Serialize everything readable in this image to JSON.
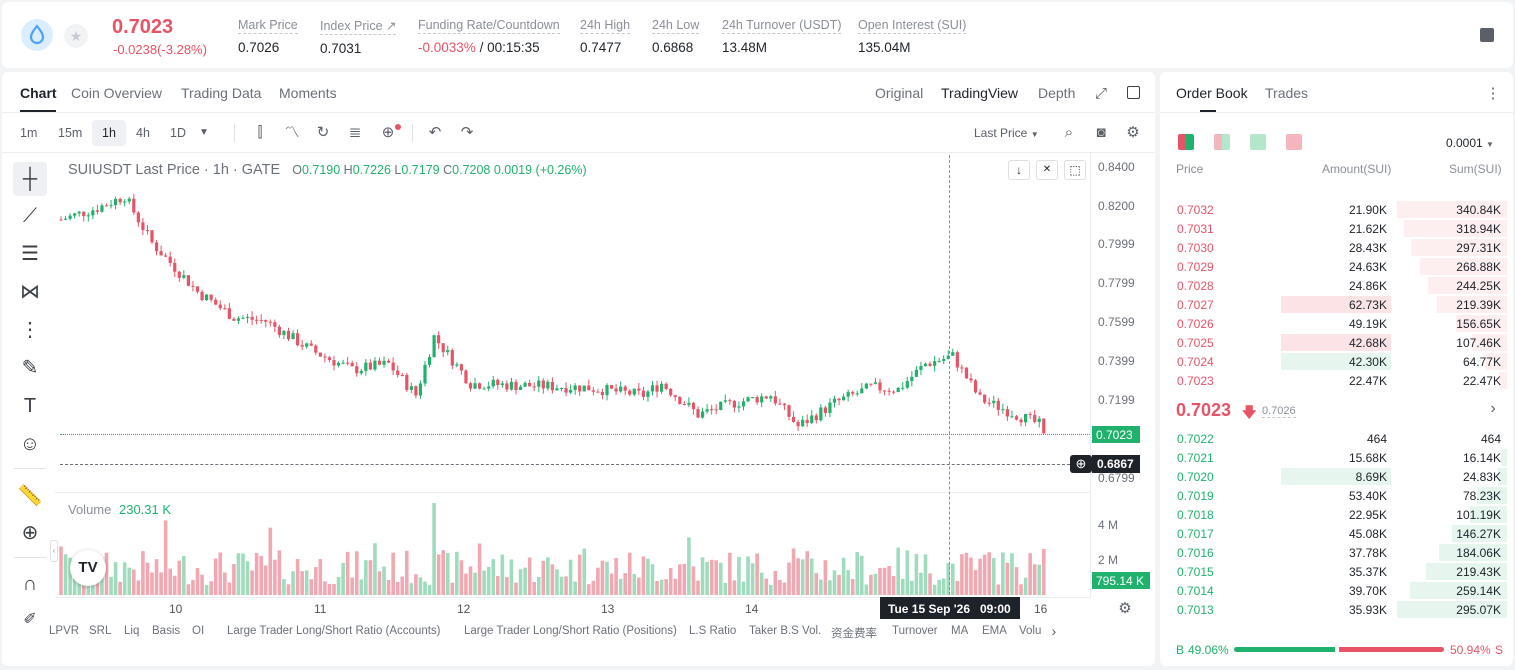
{
  "header": {
    "last_price": "0.7023",
    "change": "-0.0238(-3.28%)",
    "stats": [
      {
        "label": "Mark Price",
        "value": "0.7026"
      },
      {
        "label": "Index Price ↗",
        "value": "0.7031"
      },
      {
        "label": "Funding Rate/Countdown",
        "value_red": "-0.0033%",
        "value": "/ 00:15:35"
      },
      {
        "label": "24h High",
        "value": "0.7477"
      },
      {
        "label": "24h Low",
        "value": "0.6868"
      },
      {
        "label": "24h Turnover (USDT)",
        "value": "13.48M"
      },
      {
        "label": "Open Interest (SUI)",
        "value": "135.04M"
      }
    ]
  },
  "chart_panel": {
    "tabs": [
      "Chart",
      "Coin Overview",
      "Trading Data",
      "Moments"
    ],
    "views": [
      "Original",
      "TradingView",
      "Depth"
    ],
    "timeframes": [
      "1m",
      "15m",
      "1h",
      "4h",
      "1D"
    ],
    "price_type": "Last Price",
    "legend_title": "SUIUSDT Last Price · 1h · GATE",
    "ohlc": {
      "o_lbl": "O",
      "o": "0.7190",
      "h_lbl": "H",
      "h": "0.7226",
      "l_lbl": "L",
      "l": "0.7179",
      "c_lbl": "C",
      "c": "0.7208",
      "chg": "0.0019 (+0.26%)"
    },
    "volume_label": "Volume",
    "volume_value": "230.31 K",
    "price_ticks": [
      "0.8400",
      "0.8200",
      "0.7999",
      "0.7799",
      "0.7599",
      "0.7399",
      "0.7199",
      "0.6799"
    ],
    "current_price_tag": "0.7023",
    "crosshair_price_tag": "0.6867",
    "volume_ticks": [
      "4 M",
      "2 M"
    ],
    "volume_tag": "795.14 K",
    "x_ticks": [
      "10",
      "11",
      "12",
      "13",
      "14",
      "16"
    ],
    "crosshair_time": "Tue 15 Sep '26   09:00",
    "indicators": [
      "LPVR",
      "SRL",
      "Liq",
      "Basis",
      "OI",
      "Large Trader Long/Short Ratio (Accounts)",
      "Large Trader Long/Short Ratio (Positions)",
      "L.S Ratio",
      "Taker B.S Vol.",
      "资金费率",
      "Turnover",
      "MA",
      "EMA",
      "Volu"
    ]
  },
  "order_book": {
    "tabs": [
      "Order Book",
      "Trades"
    ],
    "precision": "0.0001",
    "columns": [
      "Price",
      "Amount(SUI)",
      "Sum(SUI)"
    ],
    "asks": [
      {
        "price": "0.7032",
        "amount": "21.90K",
        "sum": "340.84K",
        "amt_frac": 0.0,
        "sum_frac": 1.0
      },
      {
        "price": "0.7031",
        "amount": "21.62K",
        "sum": "318.94K",
        "amt_frac": 0.0,
        "sum_frac": 0.94
      },
      {
        "price": "0.7030",
        "amount": "28.43K",
        "sum": "297.31K",
        "amt_frac": 0.0,
        "sum_frac": 0.87
      },
      {
        "price": "0.7029",
        "amount": "24.63K",
        "sum": "268.88K",
        "amt_frac": 0.0,
        "sum_frac": 0.79
      },
      {
        "price": "0.7028",
        "amount": "24.86K",
        "sum": "244.25K",
        "amt_frac": 0.0,
        "sum_frac": 0.72
      },
      {
        "price": "0.7027",
        "amount": "62.73K",
        "sum": "219.39K",
        "amt_frac": 1.0,
        "sum_frac": 0.64
      },
      {
        "price": "0.7026",
        "amount": "49.19K",
        "sum": "156.65K",
        "amt_frac": 0.0,
        "sum_frac": 0.46
      },
      {
        "price": "0.7025",
        "amount": "42.68K",
        "sum": "107.46K",
        "amt_frac": 1.0,
        "sum_frac": 0.32
      },
      {
        "price": "0.7024",
        "amount": "42.30K",
        "sum": "64.77K",
        "amt_frac": 1.0,
        "sum_frac": 0.19,
        "amt_green": true
      },
      {
        "price": "0.7023",
        "amount": "22.47K",
        "sum": "22.47K",
        "amt_frac": 0.0,
        "sum_frac": 0.07
      }
    ],
    "mid_price": "0.7023",
    "mid_mark": "0.7026",
    "bids": [
      {
        "price": "0.7022",
        "amount": "464",
        "sum": "464",
        "amt_frac": 0.0,
        "sum_frac": 0.0
      },
      {
        "price": "0.7021",
        "amount": "15.68K",
        "sum": "16.14K",
        "amt_frac": 0.0,
        "sum_frac": 0.05
      },
      {
        "price": "0.7020",
        "amount": "8.69K",
        "sum": "24.83K",
        "amt_frac": 1.0,
        "sum_frac": 0.08
      },
      {
        "price": "0.7019",
        "amount": "53.40K",
        "sum": "78.23K",
        "amt_frac": 0.0,
        "sum_frac": 0.27
      },
      {
        "price": "0.7018",
        "amount": "22.95K",
        "sum": "101.19K",
        "amt_frac": 0.0,
        "sum_frac": 0.34
      },
      {
        "price": "0.7017",
        "amount": "45.08K",
        "sum": "146.27K",
        "amt_frac": 0.0,
        "sum_frac": 0.5
      },
      {
        "price": "0.7016",
        "amount": "37.78K",
        "sum": "184.06K",
        "amt_frac": 0.0,
        "sum_frac": 0.62
      },
      {
        "price": "0.7015",
        "amount": "35.37K",
        "sum": "219.43K",
        "amt_frac": 0.0,
        "sum_frac": 0.74
      },
      {
        "price": "0.7014",
        "amount": "39.70K",
        "sum": "259.14K",
        "amt_frac": 0.0,
        "sum_frac": 0.88
      },
      {
        "price": "0.7013",
        "amount": "35.93K",
        "sum": "295.07K",
        "amt_frac": 0.0,
        "sum_frac": 1.0
      }
    ],
    "buy_ratio": "49.06%",
    "sell_ratio": "50.94%",
    "buy_label": "B",
    "sell_label": "S",
    "buy_frac": 0.4906
  },
  "colors": {
    "up": "#20b26c",
    "down": "#e85467",
    "accent": "#1e2329"
  }
}
